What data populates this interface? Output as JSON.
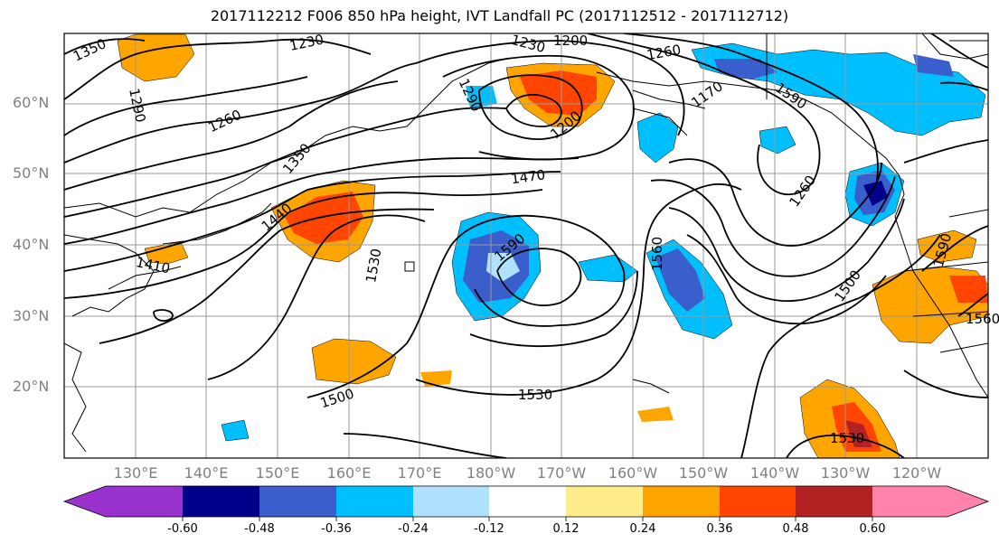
{
  "title": "2017112212 F006 850 hPa height, IVT Landfall PC (2017112512 - 2017112712)",
  "lat_labels": [
    "60°N",
    "50°N",
    "40°N",
    "30°N",
    "20°N"
  ],
  "lon_labels": [
    "130°E",
    "140°E",
    "150°E",
    "160°E",
    "170°E",
    "180°W",
    "170°W",
    "160°W",
    "150°W",
    "140°W",
    "130°W",
    "120°W"
  ],
  "colorbar": {
    "colors": [
      "#9932cc",
      "#00008b",
      "#3a5fcd",
      "#00bfff",
      "#b0e2ff",
      "#ffffff",
      "#ffec8b",
      "#ffa500",
      "#ff4500",
      "#b22222",
      "#ff82ab"
    ],
    "tick_labels": [
      "-0.60",
      "-0.48",
      "-0.36",
      "-0.24",
      "-0.12",
      "0.12",
      "0.24",
      "0.36",
      "0.48",
      "0.60"
    ]
  },
  "contour_labels": [
    "1350",
    "1230",
    "1200",
    "1260",
    "1290",
    "1260",
    "1230",
    "1200",
    "1290",
    "1350",
    "1440",
    "1470",
    "1590",
    "1410",
    "1530",
    "1560",
    "1500",
    "1260",
    "1590",
    "1530",
    "1500",
    "1530",
    "1170",
    "1590",
    "1560"
  ],
  "contour_label_values": [
    1350,
    1230,
    1200,
    1260,
    1290,
    1260,
    1230,
    1200,
    1290,
    1350,
    1440,
    1470,
    1590,
    1410,
    1530,
    1560,
    1500,
    1260,
    1590,
    1530,
    1500,
    1530,
    1170,
    1590,
    1560
  ],
  "colors_meaning": {
    "negative": "blue shades",
    "positive": "orange/red shades"
  }
}
